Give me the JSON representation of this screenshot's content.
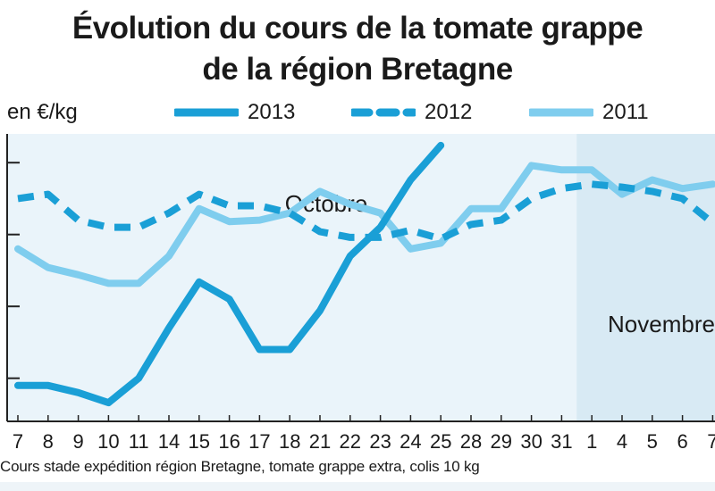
{
  "title_line1": "Évolution du cours de la tomate grappe",
  "title_line2": "de la région Bretagne",
  "unit_label": "en €/kg",
  "footnote": "Cours stade expédition région Bretagne, tomate grappe extra, colis 10 kg",
  "colors": {
    "dark": "#1a9fd6",
    "light": "#7fcdee",
    "plot_bg": "#eaf4fa",
    "nov_bg": "#d8eaf4"
  },
  "chart_data": {
    "type": "line",
    "title": "Évolution du cours de la tomate grappe de la région Bretagne",
    "ylabel": "en €/kg",
    "categories": [
      "7",
      "8",
      "9",
      "10",
      "11",
      "14",
      "15",
      "16",
      "17",
      "18",
      "21",
      "22",
      "23",
      "24",
      "25",
      "28",
      "29",
      "30",
      "31",
      "1",
      "4",
      "5",
      "6",
      "7"
    ],
    "period_labels": [
      {
        "label": "Octobre",
        "from": 0,
        "to": 18
      },
      {
        "label": "Novembre",
        "from": 19,
        "to": 23
      }
    ],
    "ylim": [
      0.2,
      2.2
    ],
    "grid": false,
    "legend": "top",
    "series": [
      {
        "name": "2013",
        "style": "solid",
        "color": "#1a9fd6",
        "values": [
          0.45,
          0.45,
          0.4,
          0.33,
          0.5,
          0.85,
          1.17,
          1.05,
          0.7,
          0.7,
          0.97,
          1.35,
          1.55,
          1.88,
          2.12,
          null,
          null,
          null,
          null,
          null,
          null,
          null,
          null,
          null
        ]
      },
      {
        "name": "2012",
        "style": "dashed",
        "color": "#1a9fd6",
        "values": [
          1.75,
          1.78,
          1.6,
          1.55,
          1.55,
          1.65,
          1.78,
          1.7,
          1.7,
          1.65,
          1.52,
          1.48,
          1.48,
          1.53,
          1.47,
          1.57,
          1.6,
          1.75,
          1.82,
          1.85,
          1.83,
          1.8,
          1.75,
          1.58
        ]
      },
      {
        "name": "2011",
        "style": "solid",
        "color": "#7fcdee",
        "values": [
          1.4,
          1.27,
          1.22,
          1.16,
          1.16,
          1.35,
          1.68,
          1.59,
          1.6,
          1.65,
          1.8,
          1.71,
          1.65,
          1.4,
          1.44,
          1.68,
          1.68,
          1.98,
          1.95,
          1.95,
          1.78,
          1.88,
          1.82,
          1.85
        ]
      }
    ]
  }
}
